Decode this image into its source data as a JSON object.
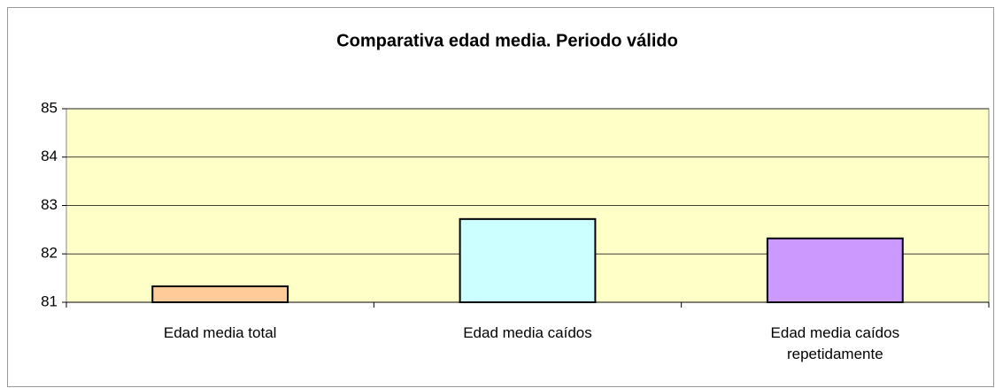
{
  "chart_data": {
    "type": "bar",
    "title": "Comparativa edad media. Periodo válido",
    "categories": [
      "Edad media total",
      "Edad media caídos",
      "Edad media caídos repetidamente"
    ],
    "values": [
      81.33,
      82.72,
      82.32
    ],
    "colors": [
      "#ffcc99",
      "#ccffff",
      "#cc99ff"
    ],
    "ylim": [
      81,
      85
    ],
    "yticks": [
      81,
      82,
      83,
      84,
      85
    ],
    "grid": true
  }
}
